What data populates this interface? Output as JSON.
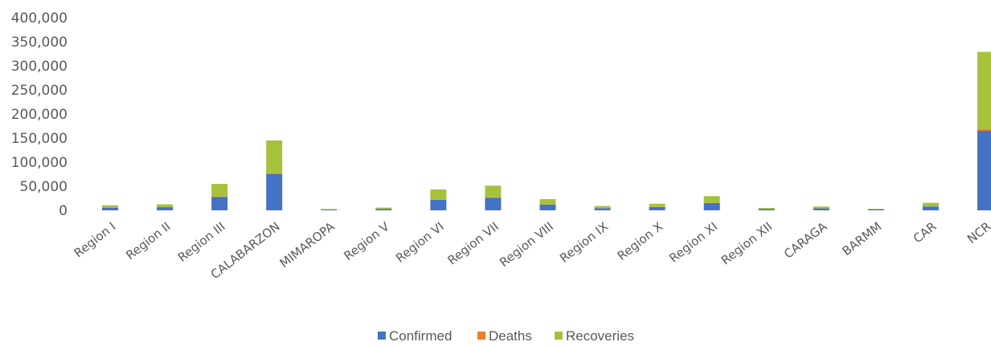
{
  "chart_data": {
    "type": "bar",
    "stacked": true,
    "title": "",
    "xlabel": "",
    "ylabel": "",
    "ylim": [
      0,
      400000
    ],
    "y_ticks": [
      "0",
      "50,000",
      "100,000",
      "150,000",
      "200,000",
      "250,000",
      "300,000",
      "350,000",
      "400,000"
    ],
    "y_tick_values": [
      0,
      50000,
      100000,
      150000,
      200000,
      250000,
      300000,
      350000,
      400000
    ],
    "grid": false,
    "legend_position": "bottom",
    "categories": [
      "Region I",
      "Region II",
      "Region III",
      "CALABARZON",
      "MIMAROPA",
      "Region V",
      "Region VI",
      "Region VII",
      "Region VIII",
      "Region IX",
      "Region X",
      "Region XI",
      "Region XII",
      "CARAGA",
      "BARMM",
      "CAR",
      "NCR"
    ],
    "series": [
      {
        "name": "Confirmed",
        "color": "#4472C4",
        "values": [
          5500,
          6500,
          28000,
          75000,
          1500,
          3000,
          22000,
          26000,
          12000,
          4500,
          7000,
          15000,
          2500,
          4000,
          1800,
          8000,
          165000
        ]
      },
      {
        "name": "Deaths",
        "color": "#ED7D31",
        "values": [
          150,
          150,
          800,
          2000,
          20,
          60,
          300,
          1200,
          200,
          200,
          200,
          500,
          60,
          60,
          60,
          100,
          4000
        ]
      },
      {
        "name": "Recoveries",
        "color": "#A5C23A",
        "values": [
          4800,
          5800,
          26000,
          68000,
          1300,
          2600,
          21000,
          24000,
          11000,
          4300,
          6500,
          14000,
          2300,
          3800,
          1500,
          7500,
          160000
        ]
      }
    ]
  }
}
